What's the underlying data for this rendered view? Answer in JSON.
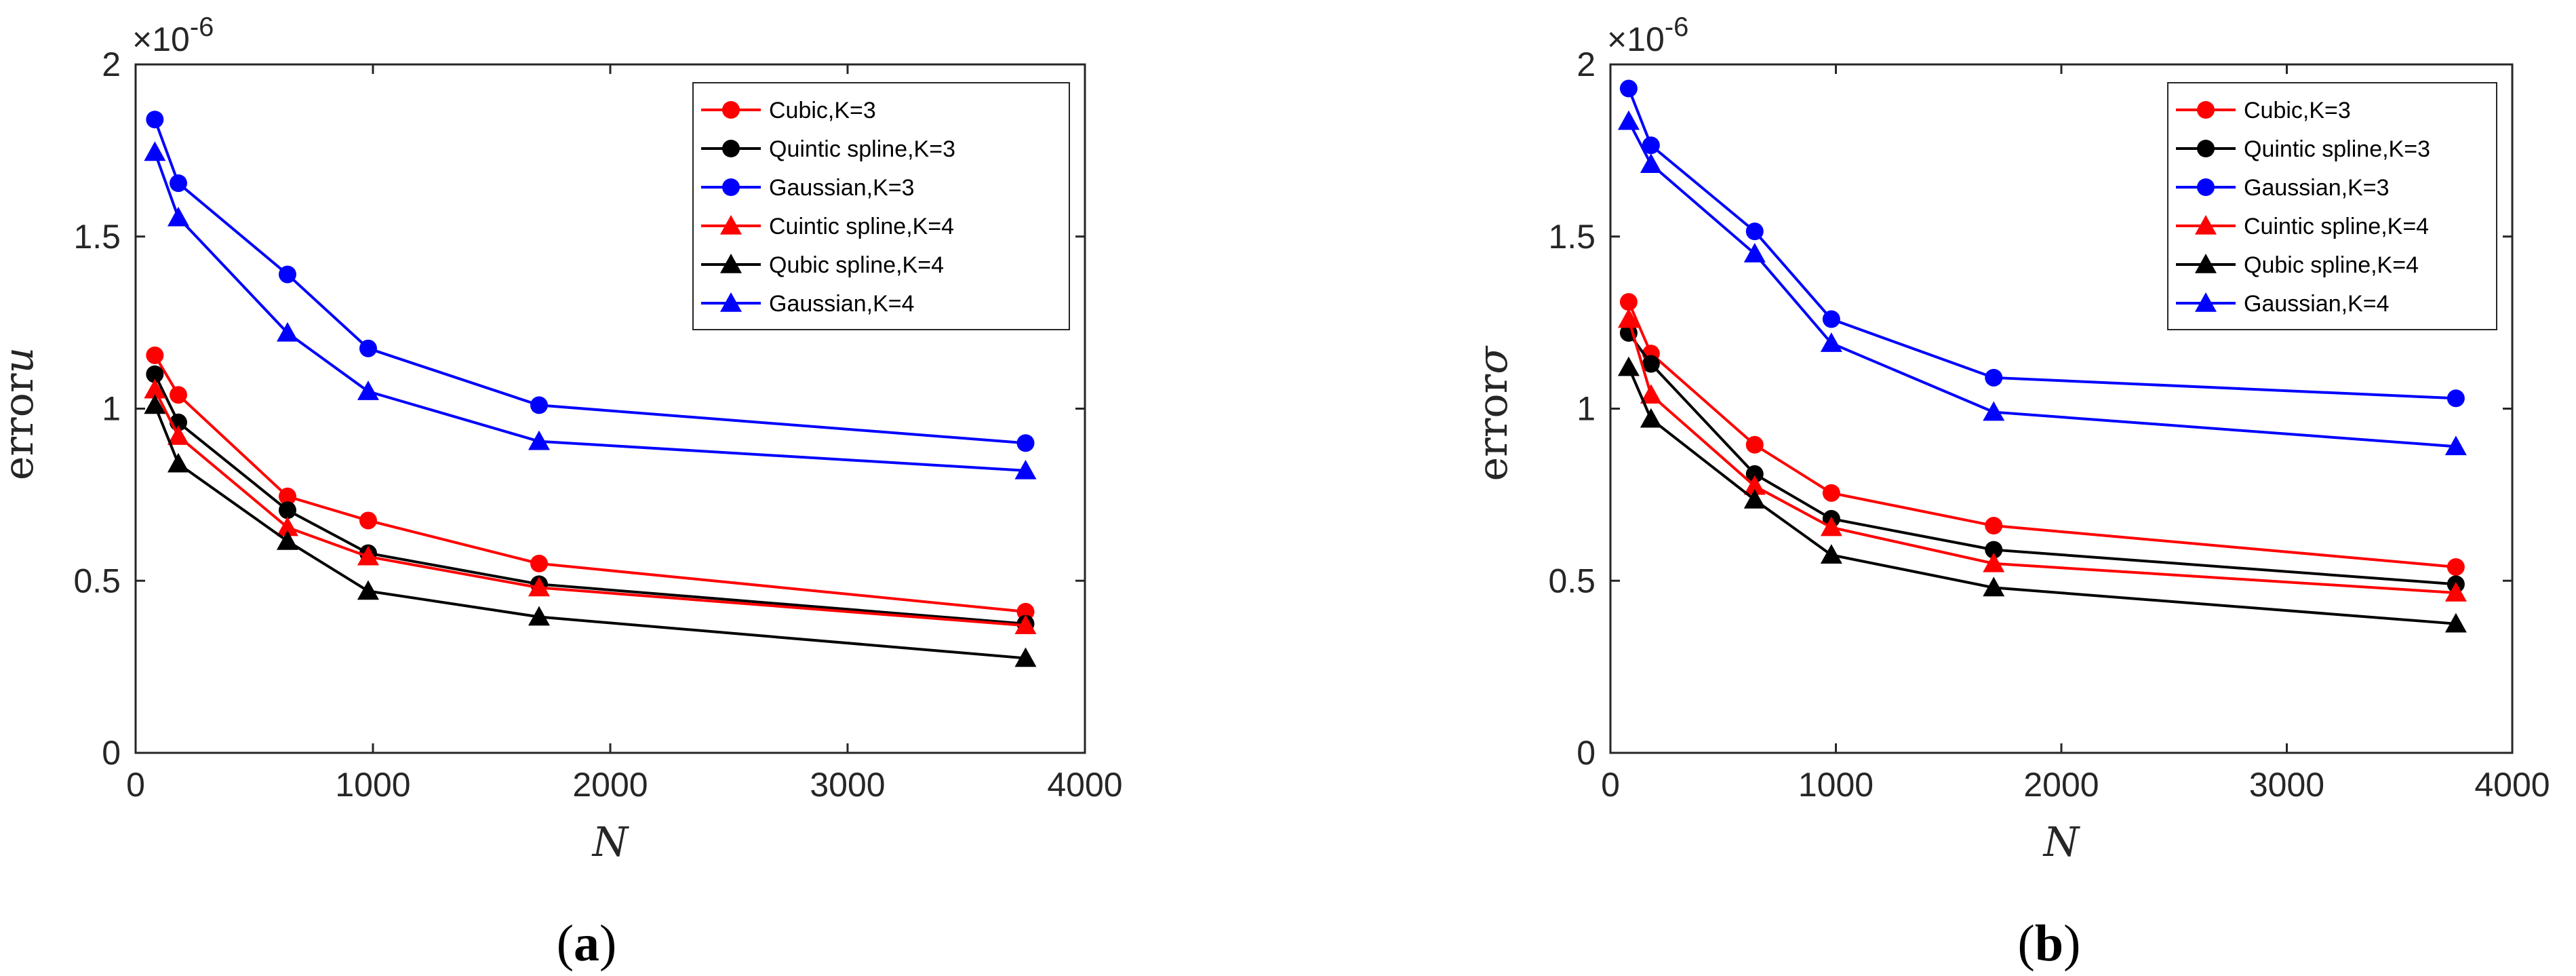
{
  "chart_data": [
    {
      "type": "line",
      "caption_letter": "a",
      "ylabel_prefix": "error",
      "ylabel_var": "u",
      "xlabel": "N",
      "exponent_label": "×10",
      "exponent_power": "-6",
      "xlim": [
        0,
        4000
      ],
      "ylim": [
        0,
        2
      ],
      "xticks": [
        "0",
        "1000",
        "2000",
        "3000",
        "4000"
      ],
      "yticks": [
        "0",
        "0.5",
        "1",
        "1.5",
        "2"
      ],
      "legend_position": "top-right",
      "x": [
        81,
        180,
        640,
        980,
        1700,
        3750
      ],
      "series": [
        {
          "name": "Cubic,K=3",
          "color": "#ff0000",
          "marker": "circle",
          "values": [
            1.155,
            1.04,
            0.745,
            0.675,
            0.55,
            0.41
          ]
        },
        {
          "name": "Quintic spline,K=3",
          "color": "#000000",
          "marker": "circle",
          "values": [
            1.1,
            0.96,
            0.705,
            0.58,
            0.49,
            0.375
          ]
        },
        {
          "name": "Gaussian,K=3",
          "color": "#0000ff",
          "marker": "circle",
          "values": [
            1.84,
            1.655,
            1.39,
            1.175,
            1.01,
            0.9
          ]
        },
        {
          "name": "Cuintic spline,K=4",
          "color": "#ff0000",
          "marker": "triangle",
          "values": [
            1.055,
            0.92,
            0.655,
            0.57,
            0.48,
            0.37
          ]
        },
        {
          "name": "Qubic spline,K=4",
          "color": "#000000",
          "marker": "triangle",
          "values": [
            1.01,
            0.84,
            0.615,
            0.47,
            0.395,
            0.275
          ]
        },
        {
          "name": "Gaussian,K=4",
          "color": "#0000ff",
          "marker": "triangle",
          "values": [
            1.745,
            1.555,
            1.22,
            1.05,
            0.905,
            0.82
          ]
        }
      ]
    },
    {
      "type": "line",
      "caption_letter": "b",
      "ylabel_prefix": "error",
      "ylabel_var": "σ",
      "xlabel": "N",
      "exponent_label": "×10",
      "exponent_power": "-6",
      "xlim": [
        0,
        4000
      ],
      "ylim": [
        0,
        2
      ],
      "xticks": [
        "0",
        "1000",
        "2000",
        "3000",
        "4000"
      ],
      "yticks": [
        "0",
        "0.5",
        "1",
        "1.5",
        "2"
      ],
      "legend_position": "top-right",
      "x": [
        81,
        180,
        640,
        980,
        1700,
        3750
      ],
      "series": [
        {
          "name": "Cubic,K=3",
          "color": "#ff0000",
          "marker": "circle",
          "values": [
            1.31,
            1.16,
            0.895,
            0.755,
            0.66,
            0.54
          ]
        },
        {
          "name": "Quintic spline,K=3",
          "color": "#000000",
          "marker": "circle",
          "values": [
            1.22,
            1.13,
            0.81,
            0.68,
            0.59,
            0.49
          ]
        },
        {
          "name": "Gaussian,K=3",
          "color": "#0000ff",
          "marker": "circle",
          "values": [
            1.93,
            1.765,
            1.515,
            1.26,
            1.09,
            1.03
          ]
        },
        {
          "name": "Cuintic spline,K=4",
          "color": "#ff0000",
          "marker": "triangle",
          "values": [
            1.26,
            1.04,
            0.775,
            0.655,
            0.55,
            0.465
          ]
        },
        {
          "name": "Qubic spline,K=4",
          "color": "#000000",
          "marker": "triangle",
          "values": [
            1.12,
            0.97,
            0.735,
            0.575,
            0.48,
            0.375
          ]
        },
        {
          "name": "Gaussian,K=4",
          "color": "#0000ff",
          "marker": "triangle",
          "values": [
            1.835,
            1.71,
            1.45,
            1.19,
            0.99,
            0.89
          ]
        }
      ]
    }
  ]
}
